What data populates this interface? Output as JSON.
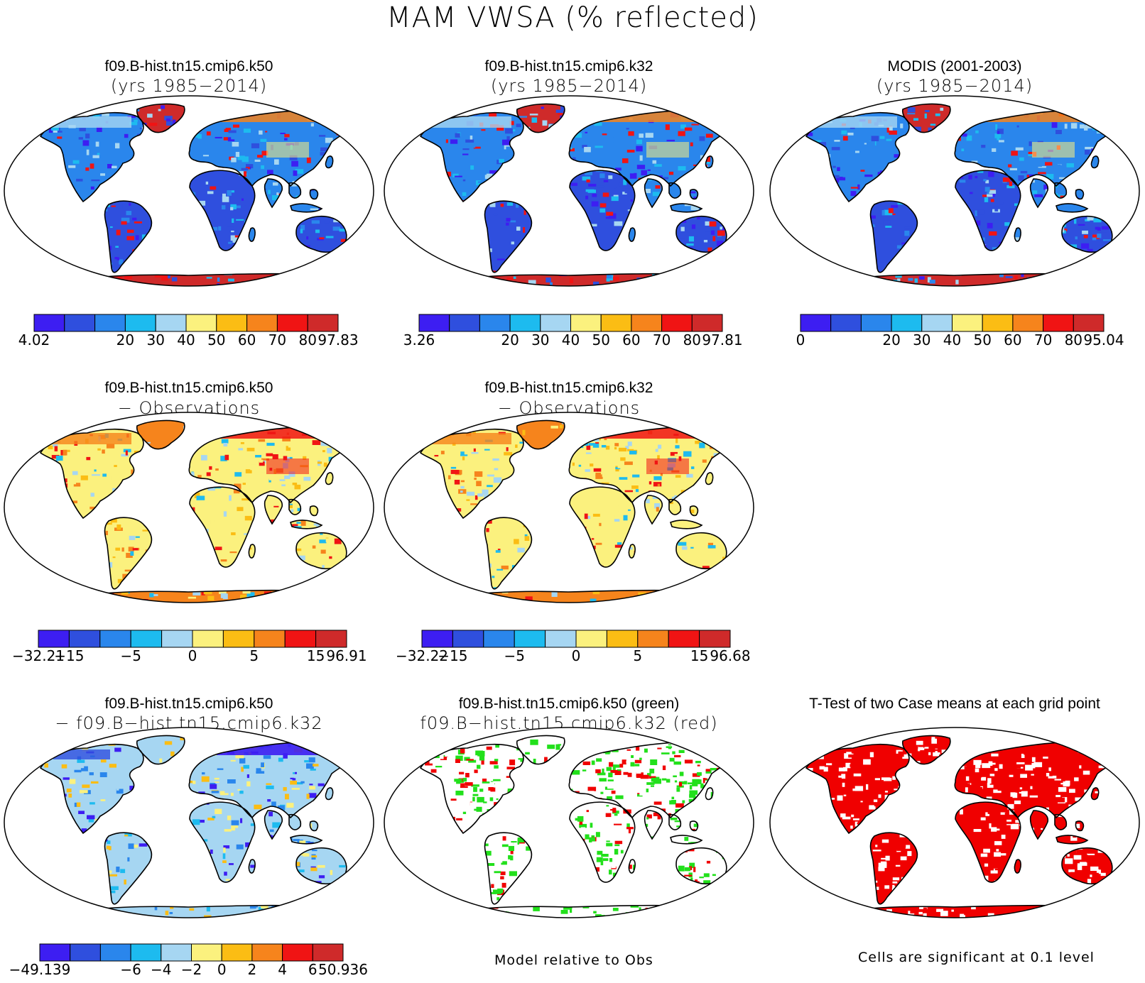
{
  "main_title": "MAM VWSA (% reflected)",
  "panels": [
    {
      "title": "f09.B-hist.tn15.cmip6.k50",
      "subtitle": "(yrs 1985−2014)",
      "scheme": "abs",
      "variant": 0,
      "colorbar": "cb1"
    },
    {
      "title": "f09.B-hist.tn15.cmip6.k32",
      "subtitle": "(yrs 1985−2014)",
      "scheme": "abs",
      "variant": 1,
      "colorbar": "cb2"
    },
    {
      "title": "MODIS (2001-2003)",
      "subtitle": "(yrs 1985−2014)",
      "scheme": "abs",
      "variant": 2,
      "colorbar": "cb3"
    },
    {
      "title": "f09.B-hist.tn15.cmip6.k50",
      "subtitle": "− Observations",
      "scheme": "diff",
      "variant": 3,
      "colorbar": "cb4"
    },
    {
      "title": "f09.B-hist.tn15.cmip6.k32",
      "subtitle": "− Observations",
      "scheme": "diff",
      "variant": 4,
      "colorbar": "cb5"
    },
    {
      "title": "f09.B-hist.tn15.cmip6.k50",
      "subtitle": "− f09.B−hist.tn15.cmip6.k32",
      "scheme": "diff2",
      "variant": 5,
      "colorbar": "cb6"
    },
    {
      "title": "f09.B-hist.tn15.cmip6.k50 (green)",
      "subtitle": "f09.B−hist.tn15.cmip6.k32 (red)",
      "scheme": "greenred",
      "variant": 6,
      "colorbar": null
    },
    {
      "title": "T-Test of two Case means at each grid point",
      "subtitle": "",
      "scheme": "ttest",
      "variant": 7,
      "colorbar": null
    }
  ],
  "notes": {
    "model_relative": "Model relative to Obs",
    "significance": "Cells are significant at 0.1 level"
  },
  "colors": {
    "palette": [
      "#3d1ef2",
      "#2f4fde",
      "#2a86ec",
      "#1dbbef",
      "#a6d6f2",
      "#fbf17e",
      "#fbbd14",
      "#f6841c",
      "#f01414",
      "#cf2a2a"
    ],
    "green": "#22e01b",
    "red": "#f00000",
    "outline": "#000000"
  },
  "chart_data": [
    {
      "id": "cb1",
      "type": "colorbar",
      "min_label": "4.02",
      "max_label": "97.83",
      "ticks": [
        "20",
        "30",
        "40",
        "50",
        "60",
        "70",
        "80"
      ]
    },
    {
      "id": "cb2",
      "type": "colorbar",
      "min_label": "3.26",
      "max_label": "97.81",
      "ticks": [
        "20",
        "30",
        "40",
        "50",
        "60",
        "70",
        "80"
      ]
    },
    {
      "id": "cb3",
      "type": "colorbar",
      "min_label": "0",
      "max_label": "95.04",
      "ticks": [
        "20",
        "30",
        "40",
        "50",
        "60",
        "70",
        "80"
      ]
    },
    {
      "id": "cb4",
      "type": "colorbar",
      "min_label": "−32.21",
      "max_label": "96.91",
      "ticks": [
        "−15",
        "",
        "−5",
        "",
        "0",
        "",
        "5",
        "",
        "15"
      ]
    },
    {
      "id": "cb5",
      "type": "colorbar",
      "min_label": "−32.22",
      "max_label": "96.68",
      "ticks": [
        "−15",
        "",
        "−5",
        "",
        "0",
        "",
        "5",
        "",
        "15"
      ]
    },
    {
      "id": "cb6",
      "type": "colorbar",
      "min_label": "−49.139",
      "max_label": "50.936",
      "ticks": [
        "−6",
        "−4",
        "−2",
        "0",
        "2",
        "4",
        "6"
      ]
    }
  ]
}
